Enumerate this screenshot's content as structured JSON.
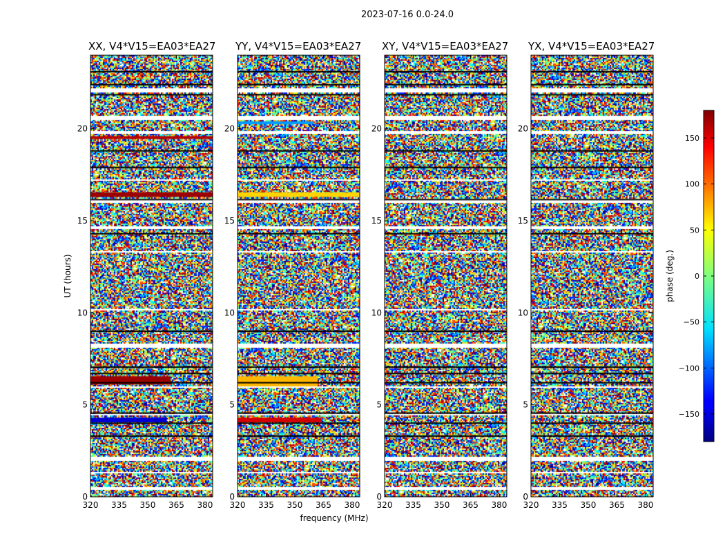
{
  "chart_data": {
    "type": "heatmap",
    "suptitle": "2023-07-16 0.0-24.0",
    "xlabel": "frequency (MHz)",
    "ylabel": "UT (hours)",
    "colorbar": {
      "label": "phase (deg.)",
      "range": [
        -180,
        180
      ],
      "ticks": [
        150,
        100,
        50,
        0,
        -50,
        -100,
        -150
      ],
      "tick_labels": [
        "150",
        "100",
        "50",
        "0",
        "−50",
        "−100",
        "−150"
      ],
      "colormap": "jet"
    },
    "xlim": [
      320,
      384
    ],
    "ylim": [
      0,
      24
    ],
    "xticks": [
      320,
      335,
      350,
      365,
      380
    ],
    "xtick_labels": [
      "320",
      "335",
      "350",
      "365",
      "380"
    ],
    "yticks": [
      0,
      5,
      10,
      15,
      20
    ],
    "ytick_labels": [
      "0",
      "5",
      "10",
      "15",
      "20"
    ],
    "panels": [
      {
        "title": "XX, V4*V15=EA03*EA27",
        "coherent_bands": [
          {
            "ut": [
              19.45,
              19.6
            ],
            "phase": 160,
            "freq_end": 384
          },
          {
            "ut": [
              16.3,
              16.55
            ],
            "phase": 170,
            "freq_end": 384
          },
          {
            "ut": [
              6.1,
              6.55
            ],
            "phase": 170,
            "freq_end": 362
          },
          {
            "ut": [
              4.05,
              4.3
            ],
            "phase": -150,
            "freq_end": 360
          }
        ]
      },
      {
        "title": "YY, V4*V15=EA03*EA27",
        "coherent_bands": [
          {
            "ut": [
              20.25,
              20.4
            ],
            "phase": -80,
            "freq_end": 360
          },
          {
            "ut": [
              16.3,
              16.55
            ],
            "phase": 60,
            "freq_end": 384
          },
          {
            "ut": [
              6.0,
              6.55
            ],
            "phase": 70,
            "freq_end": 362
          },
          {
            "ut": [
              4.05,
              4.3
            ],
            "phase": 150,
            "freq_end": 364
          }
        ]
      },
      {
        "title": "XY, V4*V15=EA03*EA27",
        "coherent_bands": []
      },
      {
        "title": "YX, V4*V15=EA03*EA27",
        "coherent_bands": []
      }
    ],
    "flagged_ut_intervals": [
      [
        22.05,
        22.25
      ],
      [
        20.55,
        20.75
      ],
      [
        19.75,
        19.9
      ],
      [
        17.2,
        17.3
      ],
      [
        16.05,
        16.2
      ],
      [
        14.6,
        14.75
      ],
      [
        13.3,
        13.4
      ],
      [
        10.15,
        10.25
      ],
      [
        8.15,
        8.35
      ],
      [
        5.95,
        6.02
      ],
      [
        4.45,
        4.55
      ],
      [
        2.0,
        2.2
      ],
      [
        1.3,
        1.4
      ],
      [
        0.4,
        0.6
      ]
    ],
    "dark_ut_lines": [
      23.1,
      22.4,
      21.85,
      18.8,
      17.9,
      16.15,
      14.3,
      9.0,
      7.05,
      6.7,
      6.2,
      4.55,
      4.0,
      3.3
    ]
  }
}
